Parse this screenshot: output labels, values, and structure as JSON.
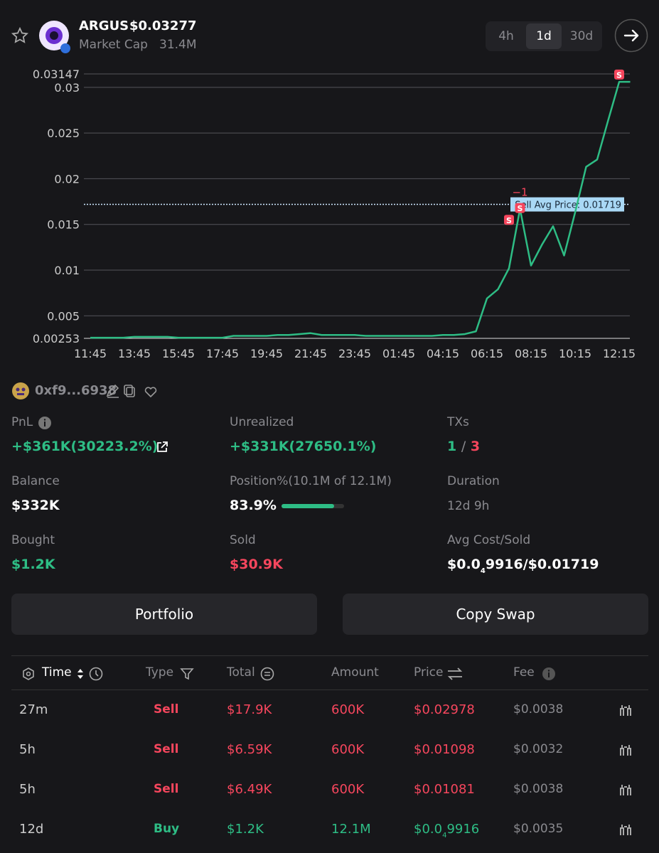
{
  "header": {
    "token": "ARGUS",
    "price": "$0.03277",
    "market_cap_label": "Market Cap",
    "market_cap": "31.4M",
    "timeframes": [
      "4h",
      "1d",
      "30d"
    ]
  },
  "chart_data": {
    "type": "line",
    "x": [
      "11:45",
      null,
      null,
      null,
      "13:45",
      null,
      null,
      null,
      "15:45",
      null,
      null,
      null,
      "17:45",
      null,
      null,
      null,
      "19:45",
      null,
      null,
      null,
      "21:45",
      null,
      null,
      null,
      "23:45",
      null,
      null,
      null,
      "01:45",
      null,
      null,
      null,
      "04:15",
      null,
      null,
      null,
      "06:15",
      null,
      null,
      null,
      "08:15",
      null,
      null,
      null,
      "10:15",
      null,
      null,
      null,
      "12:15",
      null
    ],
    "series": [
      {
        "color": "#2ebd85",
        "values": [
          0.0026,
          0.0026,
          0.0026,
          0.0026,
          0.0027,
          0.0027,
          0.0027,
          0.0027,
          0.0026,
          0.0026,
          0.0026,
          0.0026,
          0.0026,
          0.0028,
          0.0028,
          0.0028,
          0.0028,
          0.0029,
          0.0029,
          0.003,
          0.0031,
          0.0029,
          0.0029,
          0.0029,
          0.0029,
          0.0028,
          0.0028,
          0.0028,
          0.0028,
          0.0028,
          0.0028,
          0.0028,
          0.0029,
          0.0029,
          0.003,
          0.0033,
          0.0069,
          0.0079,
          0.0102,
          0.0167,
          0.0105,
          0.0128,
          0.0148,
          0.0116,
          0.0163,
          0.0213,
          0.0221,
          0.0264,
          0.0306,
          0.0306
        ]
      }
    ],
    "sell_markers": {
      "label": "S",
      "color": "#f6465d",
      "values": [
        null,
        null,
        null,
        null,
        null,
        null,
        null,
        null,
        null,
        null,
        null,
        null,
        null,
        null,
        null,
        null,
        null,
        null,
        null,
        null,
        null,
        null,
        null,
        null,
        null,
        null,
        null,
        null,
        null,
        null,
        null,
        null,
        null,
        null,
        null,
        null,
        null,
        null,
        0.0155,
        0.0168,
        null,
        null,
        null,
        null,
        null,
        null,
        null,
        null,
        0.0314,
        null
      ]
    },
    "annotation": "−1",
    "avg_line": {
      "value": 0.01719,
      "label": "Sell Avg Price: 0.01719"
    },
    "ylim": [
      0.00253,
      0.03147
    ],
    "yticks": [
      0.00253,
      0.005,
      0.01,
      0.015,
      0.02,
      0.025,
      0.03,
      0.03147
    ]
  },
  "wallet": "0xf9...6938",
  "stats": {
    "pnl": {
      "label": "PnL",
      "value": "+$361K(30223.2%)"
    },
    "unrealized": {
      "label": "Unrealized",
      "value": "+$331K(27650.1%)"
    },
    "txs": {
      "label": "TXs",
      "buys": "1",
      "sep": "/",
      "sells": "3"
    },
    "balance": {
      "label": "Balance",
      "value": "$332K"
    },
    "position": {
      "label": "Position%(10.1M of 12.1M)",
      "value": 83.9,
      "value_label": "83.9%"
    },
    "duration": {
      "label": "Duration",
      "value": "12d 9h"
    },
    "bought": {
      "label": "Bought",
      "value": "$1.2K"
    },
    "sold": {
      "label": "Sold",
      "value": "$30.9K"
    },
    "avg_cost": {
      "label": "Avg Cost/Sold",
      "prefix": "$0.0",
      "sub": "4",
      "rest": "9916/$0.01719"
    }
  },
  "buttons": [
    "Portfolio",
    "Copy Swap"
  ],
  "table": {
    "headers": [
      "Time",
      "Type",
      "Total",
      "Amount",
      "Price",
      "Fee"
    ],
    "rows": [
      {
        "time": "27m",
        "type": "Sell",
        "total": "$17.9K",
        "amount": "600K",
        "price": "$0.02978",
        "fee": "$0.0038"
      },
      {
        "time": "5h",
        "type": "Sell",
        "total": "$6.59K",
        "amount": "600K",
        "price": "$0.01098",
        "fee": "$0.0032"
      },
      {
        "time": "5h",
        "type": "Sell",
        "total": "$6.49K",
        "amount": "600K",
        "price": "$0.01081",
        "fee": "$0.0038"
      },
      {
        "time": "12d",
        "type": "Buy",
        "total": "$1.2K",
        "amount": "12.1M",
        "price": {
          "prefix": "$0.0",
          "sub": "4",
          "rest": "9916"
        },
        "fee": "$0.0035"
      }
    ]
  }
}
